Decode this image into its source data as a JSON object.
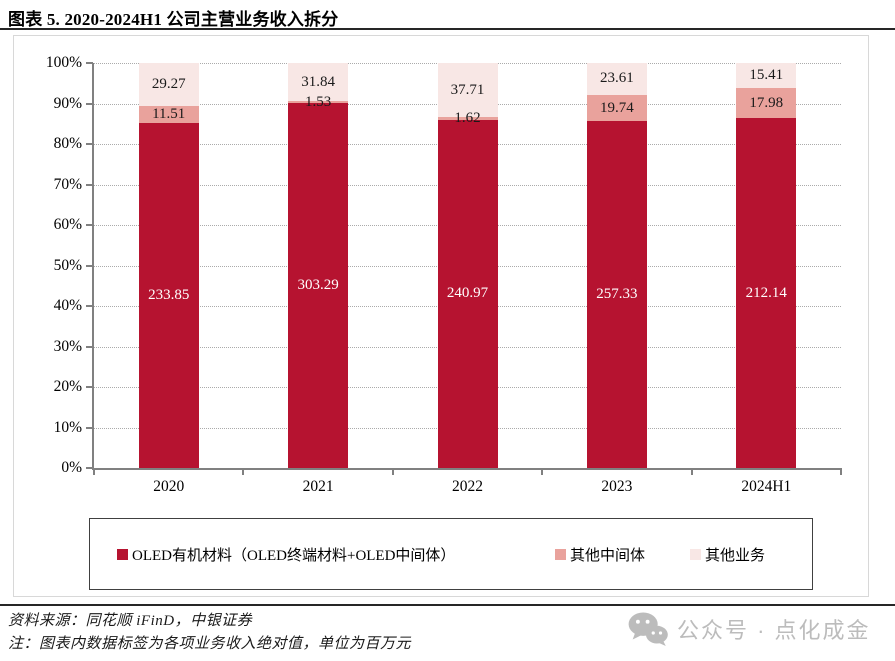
{
  "title": "图表 5. 2020-2024H1 公司主营业务收入拆分",
  "chart_data": {
    "type": "bar",
    "variant": "stacked-100-percent",
    "categories": [
      "2020",
      "2021",
      "2022",
      "2023",
      "2024H1"
    ],
    "series": [
      {
        "name": "OLED有机材料（OLED终端材料+OLED中间体）",
        "color": "#B61330",
        "label_color": "#ffffff",
        "values": [
          233.85,
          303.29,
          240.97,
          257.33,
          212.14
        ]
      },
      {
        "name": "其他中间体",
        "color": "#E9A29C",
        "label_color": "#1a1a1a",
        "values": [
          11.51,
          1.53,
          1.62,
          19.74,
          17.98
        ]
      },
      {
        "name": "其他业务",
        "color": "#F8E7E5",
        "label_color": "#1a1a1a",
        "values": [
          29.27,
          31.84,
          37.71,
          23.61,
          15.41
        ]
      }
    ],
    "y_ticks": [
      "100%",
      "90%",
      "80%",
      "70%",
      "60%",
      "50%",
      "40%",
      "30%",
      "20%",
      "10%",
      "0%"
    ],
    "ylim": [
      0,
      100
    ],
    "grid": "horizontal-dotted",
    "legend_position": "bottom-boxed",
    "value_unit": "百万元"
  },
  "footer": {
    "source": "资料来源：同花顺 iFinD，中银证券",
    "note": "注：图表内数据标签为各项业务收入绝对值，单位为百万元"
  },
  "watermark": {
    "icon": "wechat-icon",
    "text": "公众号 · 点化成金"
  }
}
